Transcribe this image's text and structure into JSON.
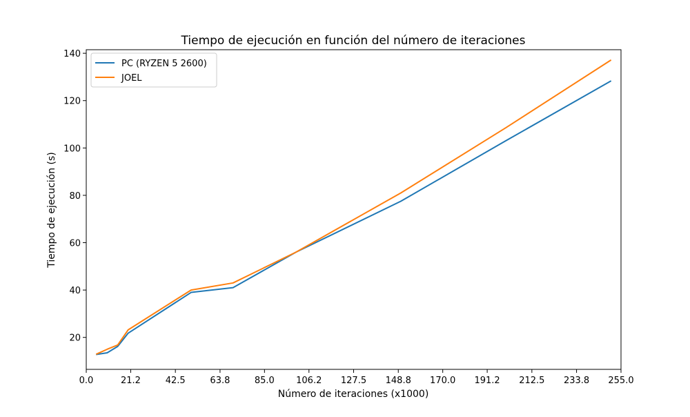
{
  "chart_data": {
    "type": "line",
    "title": "Tiempo de ejecución en función del número de iteraciones",
    "xlabel": "Número de iteraciones (x1000)",
    "ylabel": "Tiempo de ejecución (s)",
    "xlim": [
      0,
      255
    ],
    "ylim": [
      6.5,
      141.5
    ],
    "xticks": [
      0.0,
      21.2,
      42.5,
      63.8,
      85.0,
      106.2,
      127.5,
      148.8,
      170.0,
      191.2,
      212.5,
      233.8,
      255.0
    ],
    "xtick_labels": [
      "0.0",
      "21.2",
      "42.5",
      "63.8",
      "85.0",
      "106.2",
      "127.5",
      "148.8",
      "170.0",
      "191.2",
      "212.5",
      "233.8",
      "255.0"
    ],
    "yticks": [
      20,
      40,
      60,
      80,
      100,
      120,
      140
    ],
    "ytick_labels": [
      "20",
      "40",
      "60",
      "80",
      "100",
      "120",
      "140"
    ],
    "grid": false,
    "legend_position": "top-left",
    "series": [
      {
        "name": "PC (RYZEN 5 2600)",
        "color": "#1f77b4",
        "x": [
          5,
          10,
          15,
          20,
          50,
          70,
          100,
          150,
          200,
          250
        ],
        "y": [
          12.8,
          13.5,
          16.2,
          21.8,
          39,
          41,
          56,
          77.5,
          103,
          128.2
        ]
      },
      {
        "name": "JOEL",
        "color": "#ff7f0e",
        "x": [
          5,
          10,
          15,
          20,
          50,
          70,
          100,
          150,
          200,
          250
        ],
        "y": [
          13,
          15,
          16.8,
          23.2,
          40,
          43,
          56,
          81,
          108.5,
          137
        ]
      }
    ]
  }
}
